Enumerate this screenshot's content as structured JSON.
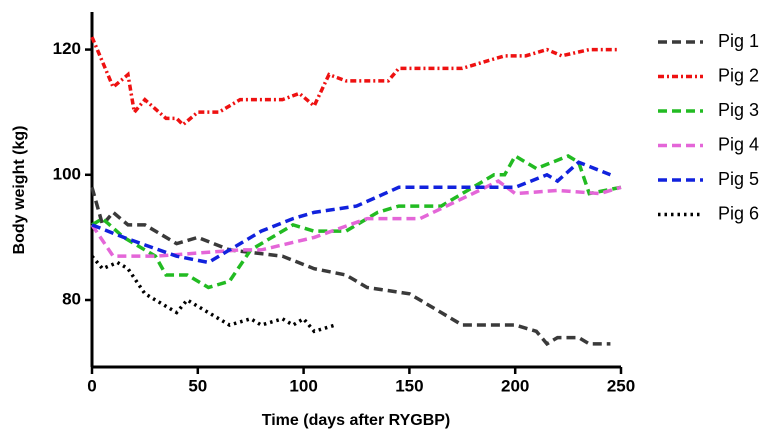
{
  "chart_data": {
    "type": "line",
    "xlabel": "Time (days after RYGBP)",
    "ylabel": "Body weight (kg)",
    "xlim": [
      0,
      250
    ],
    "xticks": [
      0,
      50,
      100,
      150,
      200,
      250
    ],
    "ylim": [
      69.3,
      126
    ],
    "yticks": [
      80,
      100,
      120
    ],
    "grid": false,
    "legend": "right",
    "series": [
      {
        "name": "Pig 1",
        "color": "#3a3a3a",
        "dash": "dashed",
        "x": [
          0,
          5,
          10,
          17,
          25,
          30,
          40,
          50,
          65,
          90,
          105,
          120,
          130,
          150,
          165,
          175,
          200,
          210,
          215,
          220,
          230,
          235,
          245
        ],
        "values": [
          98,
          92,
          94,
          92,
          92,
          91,
          89,
          90,
          88,
          87,
          85,
          84,
          82,
          81,
          78,
          76,
          76,
          75,
          73,
          74,
          74,
          73,
          73
        ]
      },
      {
        "name": "Pig 2",
        "color": "#ee1111",
        "dash": "dash-dot",
        "x": [
          0,
          5,
          10,
          17,
          20,
          25,
          35,
          40,
          43,
          50,
          60,
          70,
          90,
          98,
          105,
          112,
          120,
          140,
          145,
          175,
          195,
          205,
          215,
          222,
          235,
          248
        ],
        "values": [
          122,
          118,
          114,
          116,
          110,
          112,
          109,
          109,
          108,
          110,
          110,
          112,
          112,
          113,
          111,
          116,
          115,
          115,
          117,
          117,
          119,
          119,
          120,
          119,
          120,
          120
        ]
      },
      {
        "name": "Pig 3",
        "color": "#22bb22",
        "dash": "dashed",
        "x": [
          0,
          5,
          15,
          30,
          35,
          45,
          55,
          65,
          75,
          95,
          105,
          120,
          135,
          145,
          165,
          180,
          190,
          195,
          200,
          210,
          225,
          230,
          235,
          250
        ],
        "values": [
          92,
          93,
          90,
          87,
          84,
          84,
          82,
          83,
          88,
          92,
          91,
          91,
          94,
          95,
          95,
          98,
          100,
          100,
          103,
          101,
          103,
          102,
          97,
          98
        ]
      },
      {
        "name": "Pig 4",
        "color": "#e466d8",
        "dash": "dashed",
        "x": [
          0,
          10,
          30,
          50,
          70,
          80,
          105,
          130,
          155,
          180,
          192,
          200,
          220,
          240,
          250
        ],
        "values": [
          92,
          87,
          87,
          87.5,
          88,
          88,
          90,
          93,
          93,
          97,
          99,
          97,
          97.5,
          97,
          98
        ]
      },
      {
        "name": "Pig 5",
        "color": "#1122dd",
        "dash": "dashed",
        "x": [
          0,
          15,
          40,
          55,
          65,
          80,
          95,
          105,
          125,
          145,
          185,
          200,
          215,
          220,
          230,
          245
        ],
        "values": [
          92,
          90,
          87,
          86,
          88,
          91,
          93,
          94,
          95,
          98,
          98,
          98,
          100,
          99,
          102,
          100
        ]
      },
      {
        "name": "Pig 6",
        "color": "#000000",
        "dash": "dotted",
        "x": [
          0,
          5,
          12,
          17,
          25,
          30,
          40,
          45,
          55,
          65,
          75,
          80,
          90,
          95,
          100,
          105,
          115
        ],
        "values": [
          87,
          85,
          86,
          85,
          81,
          80,
          78,
          80,
          78,
          76,
          77,
          76,
          77,
          76,
          77,
          75,
          76
        ]
      }
    ]
  }
}
